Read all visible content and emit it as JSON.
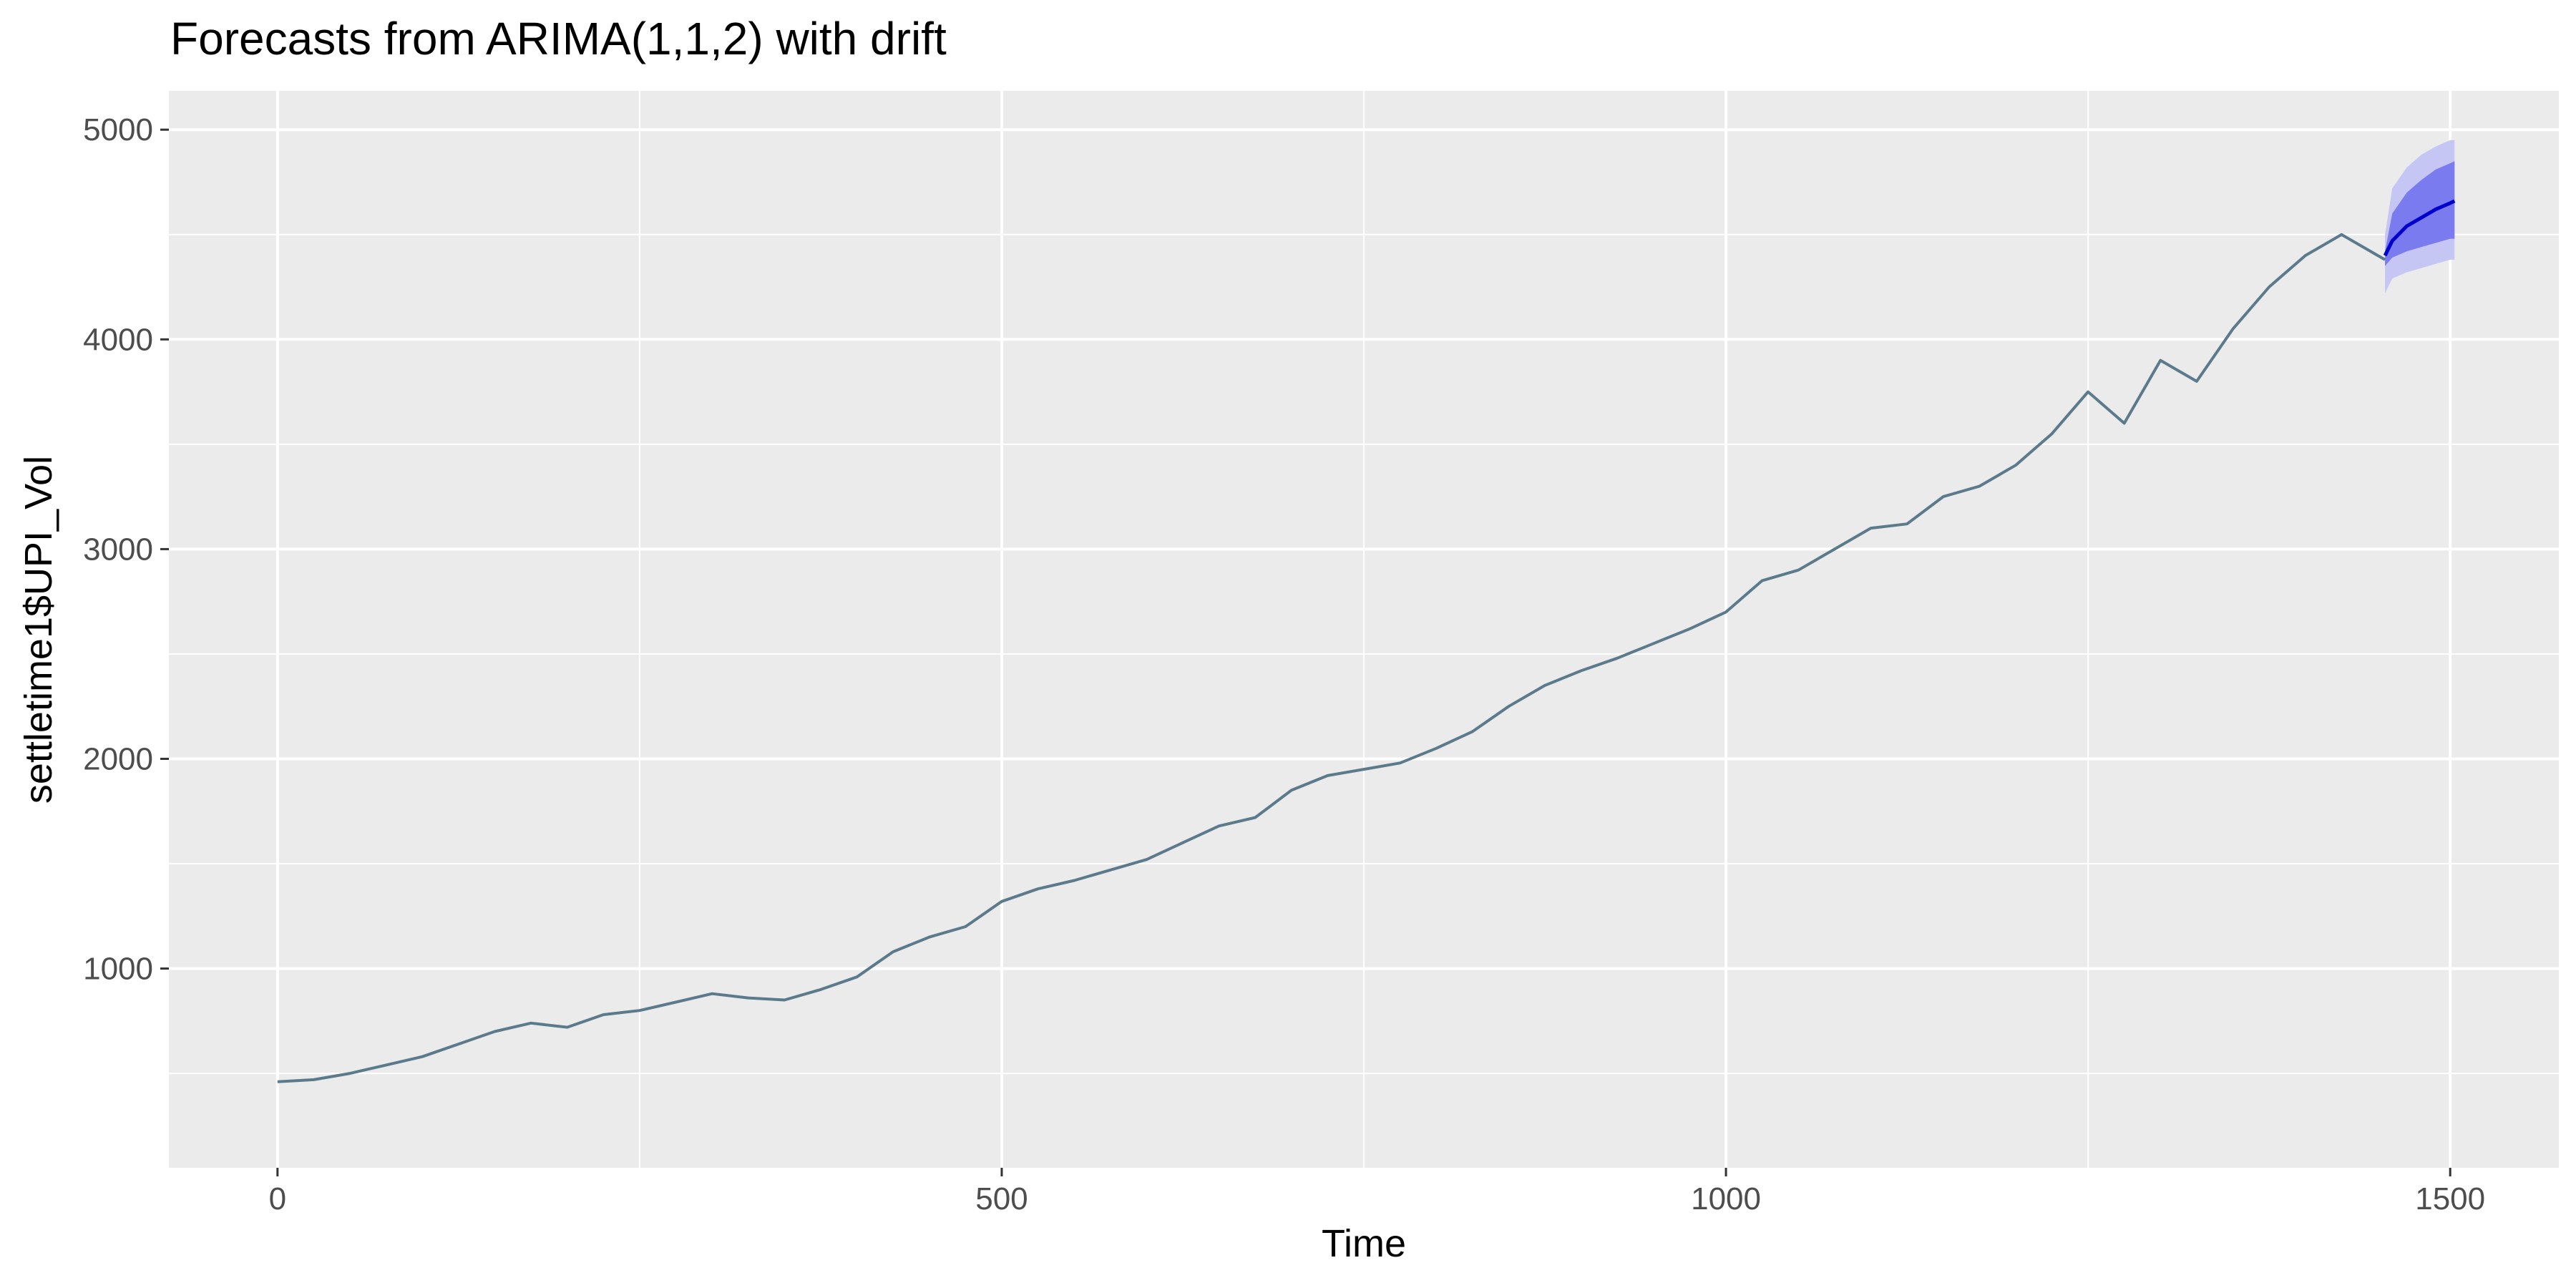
{
  "chart_data": {
    "type": "line",
    "title": "Forecasts from ARIMA(1,1,2) with drift",
    "xlabel": "Time",
    "ylabel": "settletime1$UPI_Vol",
    "xlim": [
      -75,
      1575
    ],
    "ylim": [
      50,
      5185
    ],
    "x_ticks": [
      0,
      500,
      1000,
      1500
    ],
    "x_tick_labels": [
      "0",
      "500",
      "1000",
      "1500"
    ],
    "y_ticks": [
      1000,
      2000,
      3000,
      4000,
      5000
    ],
    "y_tick_labels": [
      "1000",
      "2000",
      "3000",
      "4000",
      "5000"
    ],
    "grid": true,
    "legend": "none",
    "colors": {
      "panel": "#ebebeb",
      "grid_major": "#ffffff",
      "series": "#5b7a8b",
      "forecast": "#0000cc",
      "pi80": "#7b7bf0",
      "pi95": "#c6c6f5"
    },
    "series": [
      {
        "role": "observed",
        "x": [
          0,
          25,
          50,
          75,
          100,
          125,
          150,
          175,
          200,
          225,
          250,
          275,
          300,
          325,
          350,
          375,
          400,
          425,
          450,
          475,
          500,
          525,
          550,
          575,
          600,
          625,
          650,
          675,
          700,
          725,
          750,
          775,
          800,
          825,
          850,
          875,
          900,
          925,
          950,
          975,
          1000,
          1025,
          1050,
          1075,
          1100,
          1125,
          1150,
          1175,
          1200,
          1225,
          1250,
          1275,
          1300,
          1325,
          1350,
          1375,
          1400,
          1425,
          1450,
          1455
        ],
        "y": [
          460,
          470,
          500,
          540,
          580,
          640,
          700,
          740,
          720,
          780,
          800,
          840,
          880,
          860,
          850,
          900,
          960,
          1080,
          1150,
          1200,
          1320,
          1380,
          1420,
          1470,
          1520,
          1600,
          1680,
          1720,
          1850,
          1920,
          1950,
          1980,
          2050,
          2130,
          2250,
          2350,
          2420,
          2480,
          2550,
          2620,
          2700,
          2850,
          2900,
          3000,
          3100,
          3120,
          3250,
          3300,
          3400,
          3550,
          3750,
          3600,
          3900,
          3800,
          4050,
          4250,
          4400,
          4500,
          4400,
          4380
        ]
      }
    ],
    "forecast": {
      "x": [
        1455,
        1460,
        1470,
        1480,
        1490,
        1500,
        1503
      ],
      "mean": [
        4400,
        4470,
        4540,
        4580,
        4620,
        4650,
        4660
      ],
      "lo80": [
        4350,
        4390,
        4420,
        4440,
        4460,
        4480,
        4480
      ],
      "hi80": [
        4420,
        4600,
        4700,
        4760,
        4810,
        4840,
        4850
      ],
      "lo95": [
        4220,
        4290,
        4320,
        4340,
        4360,
        4380,
        4380
      ],
      "hi95": [
        4500,
        4720,
        4820,
        4880,
        4920,
        4950,
        4950
      ]
    }
  }
}
